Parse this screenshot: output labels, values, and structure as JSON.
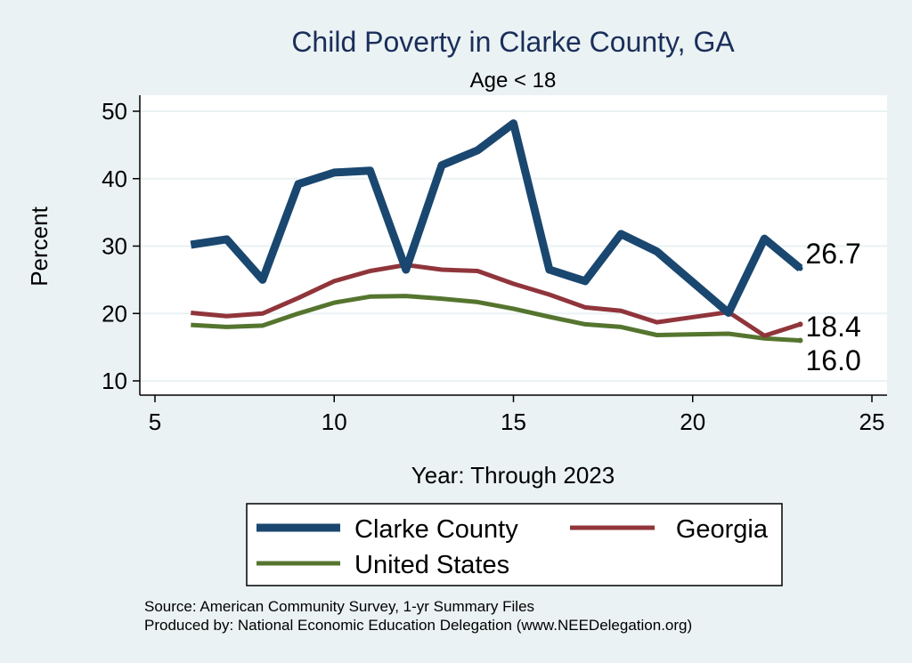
{
  "chart_data": {
    "type": "line",
    "title": "Child Poverty in Clarke County, GA",
    "subtitle": "Age < 18",
    "xlabel": "Year: Through 2023",
    "ylabel": "Percent",
    "xlim": [
      5,
      25
    ],
    "ylim": [
      8,
      52
    ],
    "xticks": [
      5,
      10,
      15,
      20,
      25
    ],
    "yticks": [
      10,
      20,
      30,
      40,
      50
    ],
    "grid": true,
    "series": [
      {
        "name": "Clarke County",
        "color": "#1a476f",
        "x": [
          6,
          7,
          8,
          9,
          10,
          11,
          12,
          13,
          14,
          15,
          16,
          17,
          18,
          19,
          21,
          22,
          23
        ],
        "values": [
          30.2,
          31.0,
          25.0,
          39.2,
          40.9,
          41.2,
          26.5,
          42.0,
          44.2,
          48.2,
          26.5,
          24.8,
          31.8,
          29.2,
          20.1,
          31.1,
          26.7
        ],
        "end_label": "26.7",
        "line_weight": "thick"
      },
      {
        "name": "Georgia",
        "color": "#90353b",
        "x": [
          6,
          7,
          8,
          9,
          10,
          11,
          12,
          13,
          14,
          15,
          16,
          17,
          18,
          19,
          21,
          22,
          23
        ],
        "values": [
          20.1,
          19.6,
          20.0,
          22.3,
          24.8,
          26.3,
          27.2,
          26.5,
          26.3,
          24.4,
          22.8,
          20.9,
          20.4,
          18.7,
          20.2,
          16.7,
          18.4
        ],
        "end_label": "18.4",
        "line_weight": "medium"
      },
      {
        "name": "United States",
        "color": "#55752f",
        "x": [
          6,
          7,
          8,
          9,
          10,
          11,
          12,
          13,
          14,
          15,
          16,
          17,
          18,
          19,
          21,
          22,
          23
        ],
        "values": [
          18.3,
          18.0,
          18.2,
          20.0,
          21.6,
          22.5,
          22.6,
          22.2,
          21.7,
          20.7,
          19.5,
          18.4,
          18.0,
          16.8,
          17.0,
          16.3,
          16.0
        ],
        "end_label": "16.0",
        "line_weight": "medium"
      }
    ],
    "legend": {
      "position": "bottom",
      "entries": [
        "Clarke County",
        "Georgia",
        "United States"
      ]
    },
    "notes": [
      "Source: American Community Survey, 1-yr Summary Files",
      "Produced by: National Economic Education Delegation (www.NEEDelegation.org)"
    ]
  }
}
